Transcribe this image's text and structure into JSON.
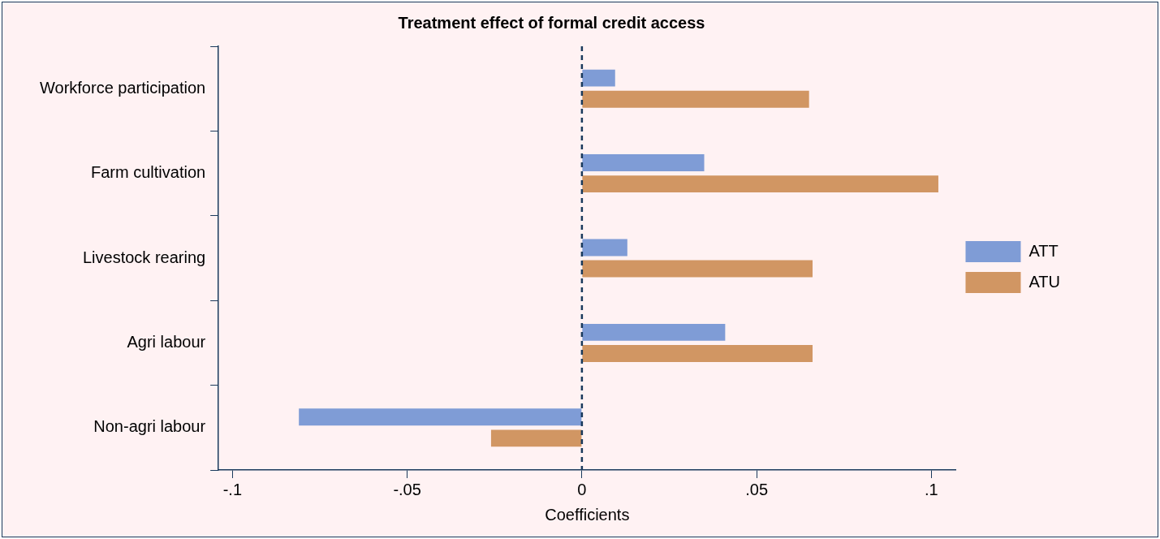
{
  "chart_data": {
    "type": "bar",
    "orientation": "horizontal",
    "title": "Treatment effect of formal credit access",
    "xlabel": "Coefficients",
    "categories": [
      "Workforce participation",
      "Farm cultivation",
      "Livestock rearing",
      "Agri labour",
      "Non-agri labour"
    ],
    "series": [
      {
        "name": "ATT",
        "color": "#7f9cd6",
        "values": [
          0.0095,
          0.035,
          0.013,
          0.041,
          -0.081
        ]
      },
      {
        "name": "ATU",
        "color": "#d19663",
        "values": [
          0.065,
          0.102,
          0.066,
          0.066,
          -0.026
        ]
      }
    ],
    "xlim": [
      -0.104,
      0.107
    ],
    "xticks": [
      {
        "value": -0.1,
        "label": "-.1"
      },
      {
        "value": -0.05,
        "label": "-.05"
      },
      0,
      {
        "value": 0.05,
        "label": ".05"
      },
      {
        "value": 0.1,
        "label": ".1"
      }
    ],
    "ref_lines": [
      {
        "axis": "x",
        "value": 0,
        "color": "#1a3a5c",
        "line_style": "dashed"
      }
    ],
    "grid": false,
    "legend": "right"
  }
}
